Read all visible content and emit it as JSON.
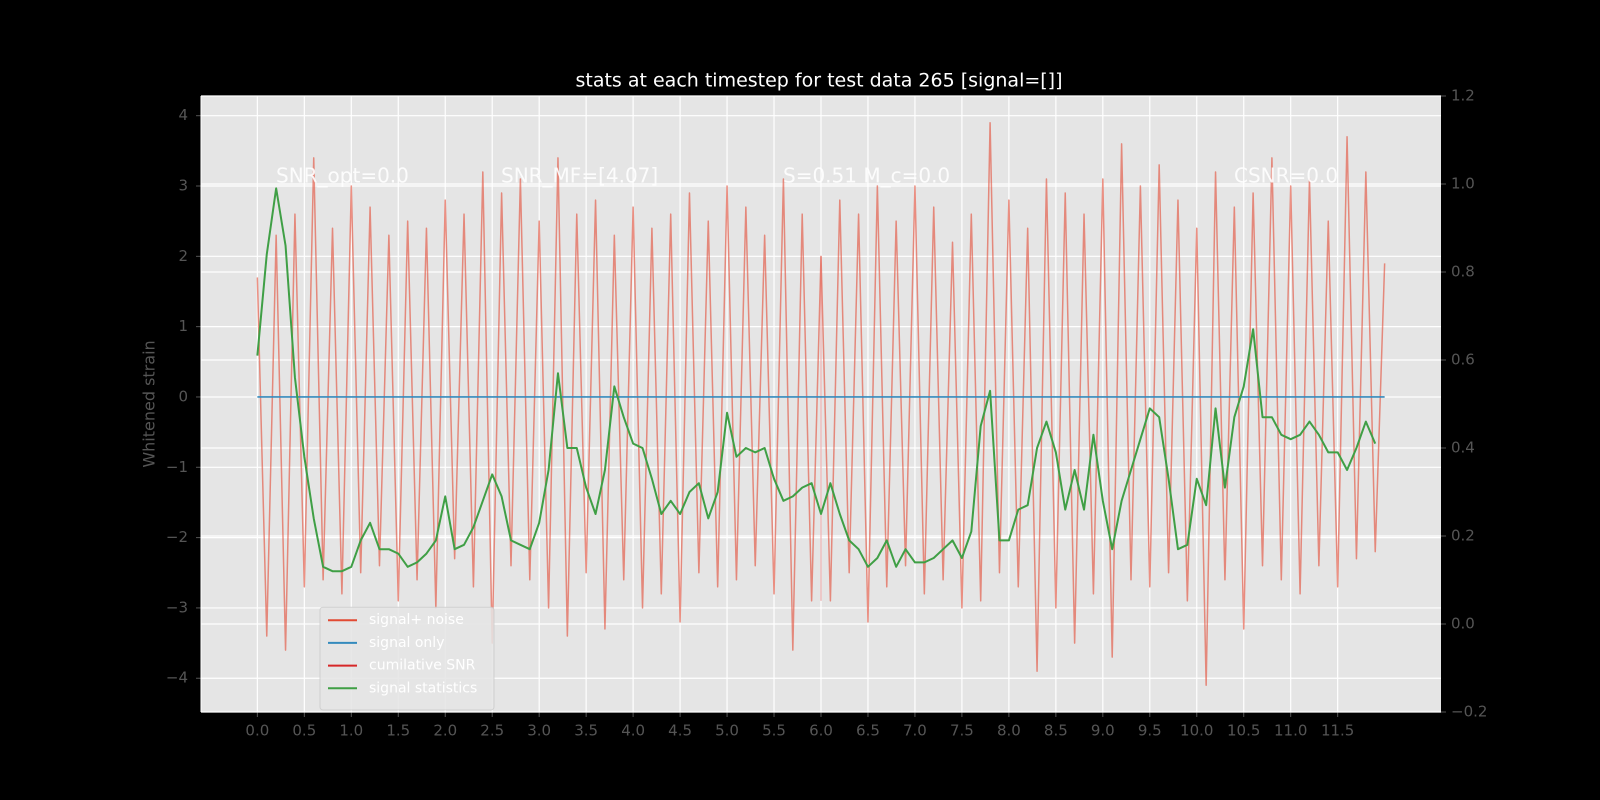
{
  "chart_data": {
    "type": "line",
    "title": "stats at each timestep for test data 265 [signal=[]]",
    "ylabel": "Whitened strain",
    "annotations": [
      "SNR_opt=0.0",
      "SNR_MF=[4.07]",
      "S=0.51  M_c=0.0",
      "CSNR=0.0"
    ],
    "xlim": [
      -0.6,
      12.6
    ],
    "ylim": [
      -4.48,
      4.28
    ],
    "y2lim": [
      -0.2,
      1.2
    ],
    "xticks": [
      {
        "value": 0,
        "label": "0.0"
      },
      0.5,
      {
        "value": 1,
        "label": "1.0"
      },
      1.5,
      {
        "value": 2,
        "label": "2.0"
      },
      2.5,
      {
        "value": 3,
        "label": "3.0"
      },
      3.5,
      {
        "value": 4,
        "label": "4.0"
      },
      4.5,
      {
        "value": 5,
        "label": "5.0"
      },
      5.5,
      {
        "value": 6,
        "label": "6.0"
      },
      6.5,
      {
        "value": 7,
        "label": "7.0"
      },
      7.5,
      {
        "value": 8,
        "label": "8.0"
      },
      8.5,
      {
        "value": 9,
        "label": "9.0"
      },
      9.5,
      {
        "value": 10,
        "label": "10.0"
      },
      10.5,
      {
        "value": 11,
        "label": "11.0"
      },
      11.5
    ],
    "yticks": [
      {
        "value": -4,
        "label": "−4"
      },
      {
        "value": -3,
        "label": "−3"
      },
      {
        "value": -2,
        "label": "−2"
      },
      {
        "value": -1,
        "label": "−1"
      },
      0,
      1,
      2,
      3,
      4
    ],
    "y2ticks": [
      {
        "value": -0.2,
        "label": "−0.2"
      },
      {
        "value": 0,
        "label": "0.0"
      },
      0.2,
      0.4,
      0.6,
      0.8,
      {
        "value": 1,
        "label": "1.0"
      },
      1.2
    ],
    "grid": true,
    "legend": "lower left",
    "series": [
      {
        "name": "signal+ noise",
        "color": "#E24A33",
        "x": [
          0,
          0.1,
          0.2,
          0.3,
          0.4,
          0.5,
          0.6,
          0.7,
          0.8,
          0.9,
          1,
          1.1,
          1.2,
          1.3,
          1.4,
          1.5,
          1.6,
          1.7,
          1.8,
          1.9,
          2,
          2.1,
          2.2,
          2.3,
          2.4,
          2.5,
          2.6,
          2.7,
          2.8,
          2.9,
          3,
          3.1,
          3.2,
          3.3,
          3.4,
          3.5,
          3.6,
          3.7,
          3.8,
          3.9,
          4,
          4.1,
          4.2,
          4.3,
          4.4,
          4.5,
          4.6,
          4.7,
          4.8,
          4.9,
          5,
          5.1,
          5.2,
          5.3,
          5.4,
          5.5,
          5.6,
          5.7,
          5.8,
          5.9,
          6,
          6.1,
          6.2,
          6.3,
          6.4,
          6.5,
          6.6,
          6.7,
          6.8,
          6.9,
          7,
          7.1,
          7.2,
          7.3,
          7.4,
          7.5,
          7.6,
          7.7,
          7.8,
          7.9,
          8,
          8.1,
          8.2,
          8.3,
          8.4,
          8.5,
          8.6,
          8.7,
          8.8,
          8.9,
          9,
          9.1,
          9.2,
          9.3,
          9.4,
          9.5,
          9.6,
          9.7,
          9.8,
          9.9,
          10,
          10.1,
          10.2,
          10.3,
          10.4,
          10.5,
          10.6,
          10.7,
          10.8,
          10.9,
          11,
          11.1,
          11.2,
          11.3,
          11.4,
          11.5,
          11.6,
          11.7,
          11.8,
          11.9,
          12
        ],
        "values": [
          1.7,
          -3.4,
          2.3,
          -3.6,
          2.6,
          -2.7,
          3.4,
          -2.6,
          2.4,
          -2.8,
          3.0,
          -2.5,
          2.7,
          -2.4,
          2.3,
          -2.9,
          2.5,
          -2.6,
          2.4,
          -3.0,
          2.8,
          -2.3,
          2.6,
          -2.7,
          3.2,
          -3.5,
          2.9,
          -2.4,
          3.1,
          -2.6,
          2.5,
          -3.0,
          3.4,
          -3.4,
          2.6,
          -2.5,
          2.8,
          -3.3,
          2.3,
          -2.6,
          2.7,
          -3.0,
          2.4,
          -2.8,
          2.6,
          -3.2,
          2.9,
          -2.5,
          2.5,
          -2.7,
          3.0,
          -2.6,
          2.7,
          -2.4,
          2.3,
          -2.8,
          3.1,
          -3.6,
          2.6,
          -2.9,
          2.0,
          -2.9,
          2.8,
          -2.5,
          2.6,
          -3.2,
          3.0,
          -2.7,
          2.5,
          -2.4,
          3.0,
          -2.8,
          2.7,
          -2.6,
          2.2,
          -3.0,
          2.6,
          -2.9,
          3.9,
          -2.5,
          2.8,
          -2.7,
          2.4,
          -3.9,
          3.1,
          -3.0,
          2.9,
          -3.5,
          2.6,
          -2.8,
          3.1,
          -3.7,
          3.6,
          -2.6,
          3.0,
          -2.7,
          3.3,
          -2.5,
          2.8,
          -2.9,
          2.4,
          -4.1,
          3.2,
          -2.6,
          2.7,
          -3.3,
          2.9,
          -2.4,
          3.4,
          -2.6,
          3.0,
          -2.8,
          3.1,
          -2.4,
          2.5,
          -2.7,
          3.7,
          -2.3,
          3.2,
          -2.2,
          1.9
        ]
      },
      {
        "name": "signal only",
        "color": "#348ABD",
        "x": [
          0,
          12
        ],
        "values": [
          0,
          0
        ]
      },
      {
        "name": "cumilative SNR",
        "color": "#d62728",
        "x": [
          6,
          6
        ],
        "values": [
          2.0,
          -2.9
        ]
      },
      {
        "name": "signal statistics",
        "color": "#3f9f45",
        "axis": "y2",
        "x": [
          0,
          0.1,
          0.2,
          0.3,
          0.4,
          0.5,
          0.6,
          0.7,
          0.8,
          0.9,
          1,
          1.1,
          1.2,
          1.3,
          1.4,
          1.5,
          1.6,
          1.7,
          1.8,
          1.9,
          2,
          2.1,
          2.2,
          2.3,
          2.4,
          2.5,
          2.6,
          2.7,
          2.8,
          2.9,
          3,
          3.1,
          3.2,
          3.3,
          3.4,
          3.5,
          3.6,
          3.7,
          3.8,
          3.9,
          4,
          4.1,
          4.2,
          4.3,
          4.4,
          4.5,
          4.6,
          4.7,
          4.8,
          4.9,
          5,
          5.1,
          5.2,
          5.3,
          5.4,
          5.5,
          5.6,
          5.7,
          5.8,
          5.9,
          6,
          6.1,
          6.2,
          6.3,
          6.4,
          6.5,
          6.6,
          6.7,
          6.8,
          6.9,
          7,
          7.1,
          7.2,
          7.3,
          7.4,
          7.5,
          7.6,
          7.7,
          7.8,
          7.9,
          8,
          8.1,
          8.2,
          8.3,
          8.4,
          8.5,
          8.6,
          8.7,
          8.8,
          8.9,
          9,
          9.1,
          9.2,
          9.3,
          9.4,
          9.5,
          9.6,
          9.7,
          9.8,
          9.9,
          10,
          10.1,
          10.2,
          10.3,
          10.4,
          10.5,
          10.6,
          10.7,
          10.8,
          10.9,
          11,
          11.1,
          11.2,
          11.3,
          11.4,
          11.5,
          11.6,
          11.7,
          11.8,
          11.9
        ],
        "values": [
          0.61,
          0.84,
          0.99,
          0.86,
          0.56,
          0.38,
          0.24,
          0.13,
          0.12,
          0.12,
          0.13,
          0.19,
          0.23,
          0.17,
          0.17,
          0.16,
          0.13,
          0.14,
          0.16,
          0.19,
          0.29,
          0.17,
          0.18,
          0.22,
          0.28,
          0.34,
          0.29,
          0.19,
          0.18,
          0.17,
          0.23,
          0.35,
          0.57,
          0.4,
          0.4,
          0.31,
          0.25,
          0.35,
          0.54,
          0.47,
          0.41,
          0.4,
          0.33,
          0.25,
          0.28,
          0.25,
          0.3,
          0.32,
          0.24,
          0.3,
          0.48,
          0.38,
          0.4,
          0.39,
          0.4,
          0.33,
          0.28,
          0.29,
          0.31,
          0.32,
          0.25,
          0.32,
          0.25,
          0.19,
          0.17,
          0.13,
          0.15,
          0.19,
          0.13,
          0.17,
          0.14,
          0.14,
          0.15,
          0.17,
          0.19,
          0.15,
          0.21,
          0.45,
          0.53,
          0.19,
          0.19,
          0.26,
          0.27,
          0.4,
          0.46,
          0.39,
          0.26,
          0.35,
          0.26,
          0.43,
          0.28,
          0.17,
          0.28,
          0.35,
          0.42,
          0.49,
          0.47,
          0.33,
          0.17,
          0.18,
          0.33,
          0.27,
          0.49,
          0.31,
          0.47,
          0.54,
          0.67,
          0.47,
          0.47,
          0.43,
          0.42,
          0.43,
          0.46,
          0.43,
          0.39,
          0.39,
          0.35,
          0.4,
          0.46,
          0.41
        ]
      }
    ]
  }
}
